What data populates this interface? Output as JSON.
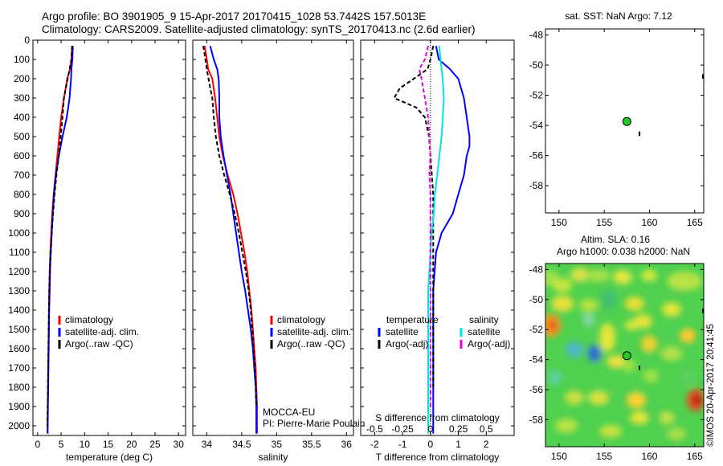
{
  "header": {
    "line1": "Argo profile: BO 3901905_9 15-Apr-2017 20170415_1028 53.7442S 157.5013E",
    "line2": "Climatology: CARS2009. Satellite-adjusted climatology: synTS_20170413.nc (2.6d earlier)"
  },
  "credit": "©IMOS 20-Apr-2017 20:41:45",
  "colors": {
    "climatology": "#ff0000",
    "satellite": "#0000ff",
    "argo": "#000000",
    "salinity_satellite": "#00e5e5",
    "salinity_argo": "#e000e0",
    "float": "#22cc22"
  },
  "depth_axis": {
    "ylim": [
      0,
      2050
    ],
    "ticks": [
      0,
      100,
      200,
      300,
      400,
      500,
      600,
      700,
      800,
      900,
      1000,
      1100,
      1200,
      1300,
      1400,
      1500,
      1600,
      1700,
      1800,
      1900,
      2000
    ]
  },
  "chart_data": [
    {
      "id": "temperature",
      "type": "line",
      "xlabel": "temperature (deg C)",
      "ylabel": "",
      "xlim": [
        -1,
        31.5
      ],
      "ylim": [
        0,
        2050
      ],
      "xticks": [
        0,
        5,
        10,
        15,
        20,
        25,
        30
      ],
      "y_inverted": true,
      "legend": {
        "position": "bottom-left",
        "entries": [
          "climatology",
          "satellite-adj. clim.",
          "Argo(..raw -QC)"
        ]
      },
      "series": [
        {
          "name": "climatology",
          "color": "#ff0000",
          "x": [
            7.3,
            7.2,
            6.9,
            6.3,
            5.6,
            5.0,
            4.6,
            4.2,
            3.8,
            3.4,
            3.1,
            2.9,
            2.7,
            2.55,
            2.45,
            2.4,
            2.35,
            2.3,
            2.25,
            2.2,
            2.15,
            2.1,
            2.1
          ],
          "y": [
            30,
            100,
            150,
            200,
            300,
            400,
            500,
            600,
            700,
            800,
            900,
            1000,
            1100,
            1200,
            1300,
            1400,
            1500,
            1600,
            1700,
            1800,
            1900,
            2000,
            2040
          ]
        },
        {
          "name": "satellite-adj. clim.",
          "color": "#0000ff",
          "x": [
            7.5,
            7.4,
            7.2,
            7.1,
            6.8,
            6.2,
            5.3,
            4.5,
            3.9,
            3.5,
            3.2,
            3.0,
            2.8,
            2.65,
            2.55,
            2.45,
            2.4,
            2.35,
            2.3,
            2.25,
            2.2,
            2.15,
            2.15
          ],
          "y": [
            30,
            100,
            150,
            200,
            300,
            400,
            500,
            600,
            700,
            800,
            900,
            1000,
            1100,
            1200,
            1300,
            1400,
            1500,
            1600,
            1700,
            1800,
            1900,
            2000,
            2040
          ]
        },
        {
          "name": "Argo(..raw -QC)",
          "color": "#000000",
          "x": [
            7.4,
            7.2,
            6.8,
            6.0,
            5.6,
            5.3,
            4.9,
            4.5,
            4.0,
            3.6,
            3.3,
            3.0,
            2.8,
            2.6,
            2.5,
            2.4,
            2.35,
            2.3,
            2.25,
            2.2,
            2.15,
            2.1
          ],
          "y": [
            30,
            100,
            150,
            250,
            300,
            400,
            500,
            600,
            700,
            800,
            900,
            1000,
            1100,
            1200,
            1300,
            1400,
            1500,
            1600,
            1700,
            1800,
            1900,
            2000
          ]
        }
      ]
    },
    {
      "id": "salinity",
      "type": "line",
      "xlabel": "salinity",
      "ylabel": "",
      "xlim": [
        33.8,
        36.1
      ],
      "ylim": [
        0,
        2050
      ],
      "xticks": [
        34,
        34.5,
        35,
        35.5,
        36
      ],
      "y_inverted": true,
      "annotations": [
        "MOCCA-EU",
        "PI: Pierre-Marie Poulain"
      ],
      "legend": {
        "position": "bottom-right",
        "entries": [
          "climatology",
          "satellite-adj. clim.",
          "Argo(..raw -QC)"
        ]
      },
      "series": [
        {
          "name": "climatology",
          "color": "#ff0000",
          "x": [
            33.97,
            34.0,
            34.02,
            34.08,
            34.12,
            34.15,
            34.18,
            34.23,
            34.3,
            34.38,
            34.44,
            34.49,
            34.54,
            34.58,
            34.61,
            34.64,
            34.66,
            34.68,
            34.7,
            34.71,
            34.72,
            34.72
          ],
          "y": [
            30,
            100,
            150,
            200,
            300,
            400,
            500,
            600,
            700,
            800,
            900,
            1000,
            1100,
            1200,
            1300,
            1400,
            1500,
            1600,
            1700,
            1800,
            1900,
            2040
          ]
        },
        {
          "name": "satellite-adj. clim.",
          "color": "#0000ff",
          "x": [
            34.05,
            34.1,
            34.15,
            34.17,
            34.18,
            34.18,
            34.2,
            34.24,
            34.29,
            34.34,
            34.38,
            34.42,
            34.46,
            34.5,
            34.55,
            34.59,
            34.63,
            34.66,
            34.68,
            34.7,
            34.71,
            34.71
          ],
          "y": [
            30,
            100,
            150,
            200,
            300,
            400,
            500,
            600,
            700,
            800,
            900,
            1000,
            1100,
            1200,
            1300,
            1400,
            1500,
            1600,
            1700,
            1800,
            1900,
            2040
          ]
        },
        {
          "name": "Argo(..raw -QC)",
          "color": "#000000",
          "x": [
            33.95,
            33.98,
            34.0,
            34.05,
            34.08,
            34.1,
            34.13,
            34.18,
            34.25,
            34.33,
            34.4,
            34.46,
            34.51,
            34.56,
            34.6,
            34.63,
            34.65,
            34.67,
            34.69,
            34.7,
            34.71
          ],
          "y": [
            30,
            100,
            150,
            250,
            300,
            400,
            500,
            600,
            700,
            800,
            900,
            1000,
            1100,
            1200,
            1300,
            1400,
            1500,
            1600,
            1700,
            1800,
            1900
          ]
        }
      ]
    },
    {
      "id": "differences",
      "type": "line",
      "xlabel": "T difference from climatology",
      "top_xlabel": "S difference from climatology",
      "xlim": [
        -2.5,
        3.0
      ],
      "ylim": [
        0,
        2050
      ],
      "xticks": [
        -2,
        -1,
        0,
        1,
        2
      ],
      "s_xlim": [
        -0.625,
        0.75
      ],
      "s_xticks": [
        -0.5,
        -0.25,
        0,
        0.25,
        0.5
      ],
      "s_xticklabels": [
        "-0.5",
        "-0.25",
        "0",
        "0.25",
        "0.5"
      ],
      "y_inverted": true,
      "legend": {
        "position": "bottom",
        "groups": [
          {
            "title": "temperature",
            "entries": [
              "satellite",
              "Argo(-adj)"
            ]
          },
          {
            "title": "salinity",
            "entries": [
              "satellite",
              "Argo(-adj)"
            ]
          }
        ]
      },
      "series": [
        {
          "name": "satellite (temperature)",
          "color": "#0000ff",
          "x": [
            0.2,
            0.3,
            0.7,
            1.0,
            1.2,
            1.3,
            1.4,
            1.4,
            1.3,
            1.2,
            1.1,
            1.0,
            0.8,
            0.4,
            0.2,
            0.15,
            0.1,
            0.1,
            0.1,
            0.1,
            0.1,
            0.1,
            0.1
          ],
          "y": [
            30,
            100,
            150,
            200,
            300,
            400,
            500,
            550,
            600,
            700,
            750,
            800,
            900,
            1000,
            1100,
            1200,
            1300,
            1400,
            1500,
            1600,
            1700,
            1800,
            2040
          ]
        },
        {
          "name": "Argo(-adj) (temperature)",
          "color": "#000000",
          "x": [
            0.1,
            0.0,
            -0.1,
            -0.6,
            -1.1,
            -1.3,
            -0.5,
            -0.2,
            -0.05,
            0.0,
            0.05,
            0.1,
            0.1,
            0.1,
            0.1,
            0.1,
            0.1,
            0.1,
            0.1,
            0.1,
            0.1,
            0.1
          ],
          "y": [
            30,
            100,
            150,
            200,
            250,
            300,
            350,
            400,
            500,
            600,
            700,
            800,
            900,
            1000,
            1100,
            1200,
            1300,
            1400,
            1500,
            1600,
            1700,
            1800
          ]
        },
        {
          "name": "satellite (salinity)",
          "color": "#00e5e5",
          "x": [
            0.08,
            0.09,
            0.1,
            0.11,
            0.12,
            0.11,
            0.1,
            0.08,
            0.06,
            0.04,
            0.03,
            0.01,
            0.0,
            -0.01,
            -0.02,
            -0.02,
            -0.02,
            -0.02,
            -0.02,
            -0.02,
            -0.02,
            -0.02
          ],
          "y": [
            30,
            100,
            150,
            200,
            300,
            400,
            500,
            600,
            700,
            800,
            900,
            1000,
            1100,
            1200,
            1300,
            1400,
            1500,
            1600,
            1700,
            1800,
            1900,
            2040
          ]
        },
        {
          "name": "Argo(-adj) (salinity)",
          "color": "#e000e0",
          "x": [
            -0.02,
            -0.05,
            -0.1,
            -0.08,
            -0.05,
            -0.02,
            -0.01,
            0.0,
            -0.01,
            0.0,
            0.0,
            0.0,
            0.0,
            0.0,
            0.0,
            0.0,
            0.0,
            0.0,
            0.0,
            0.0,
            0.0
          ],
          "y": [
            30,
            100,
            150,
            200,
            300,
            400,
            500,
            600,
            700,
            800,
            900,
            1000,
            1100,
            1200,
            1300,
            1400,
            1500,
            1600,
            1700,
            1800,
            1900
          ]
        }
      ]
    },
    {
      "id": "sst_map",
      "type": "scatter",
      "title": "sat. SST: NaN Argo: 7.12",
      "xlim": [
        148.5,
        166
      ],
      "ylim": [
        -59.8,
        -47.6
      ],
      "xticks": [
        150,
        155,
        160,
        165
      ],
      "yticks": [
        -48,
        -50,
        -52,
        -54,
        -56,
        -58
      ],
      "points": [
        {
          "x": 157.5,
          "y": -53.74
        }
      ]
    },
    {
      "id": "sla_map",
      "type": "heatmap",
      "title": "Altim. SLA: 0.16",
      "subtitle": "Argo h1000: 0.038 h2000: NaN",
      "xlim": [
        148.5,
        166
      ],
      "ylim": [
        -59.8,
        -47.6
      ],
      "xticks": [
        150,
        155,
        160,
        165
      ],
      "yticks": [
        -48,
        -50,
        -52,
        -54,
        -56,
        -58
      ],
      "points": [
        {
          "x": 157.5,
          "y": -53.74
        }
      ]
    }
  ]
}
